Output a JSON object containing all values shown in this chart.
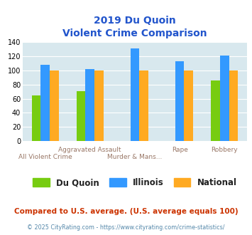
{
  "title_line1": "2019 Du Quoin",
  "title_line2": "Violent Crime Comparison",
  "categories": [
    "All Violent Crime",
    "Aggravated Assault",
    "Murder & Mans...",
    "Rape",
    "Robbery"
  ],
  "series": {
    "Du Quoin": [
      65,
      71,
      0,
      0,
      86
    ],
    "Illinois": [
      108,
      102,
      131,
      113,
      121
    ],
    "National": [
      100,
      100,
      100,
      100,
      100
    ]
  },
  "colors": {
    "Du Quoin": "#77cc11",
    "Illinois": "#3399ff",
    "National": "#ffaa22"
  },
  "ylim": [
    0,
    140
  ],
  "yticks": [
    0,
    20,
    40,
    60,
    80,
    100,
    120,
    140
  ],
  "background_color": "#d8e8ee",
  "title_color": "#2255cc",
  "footnote1": "Compared to U.S. average. (U.S. average equals 100)",
  "footnote2": "© 2025 CityRating.com - https://www.cityrating.com/crime-statistics/",
  "footnote1_color": "#cc3300",
  "footnote2_color": "#5588aa"
}
